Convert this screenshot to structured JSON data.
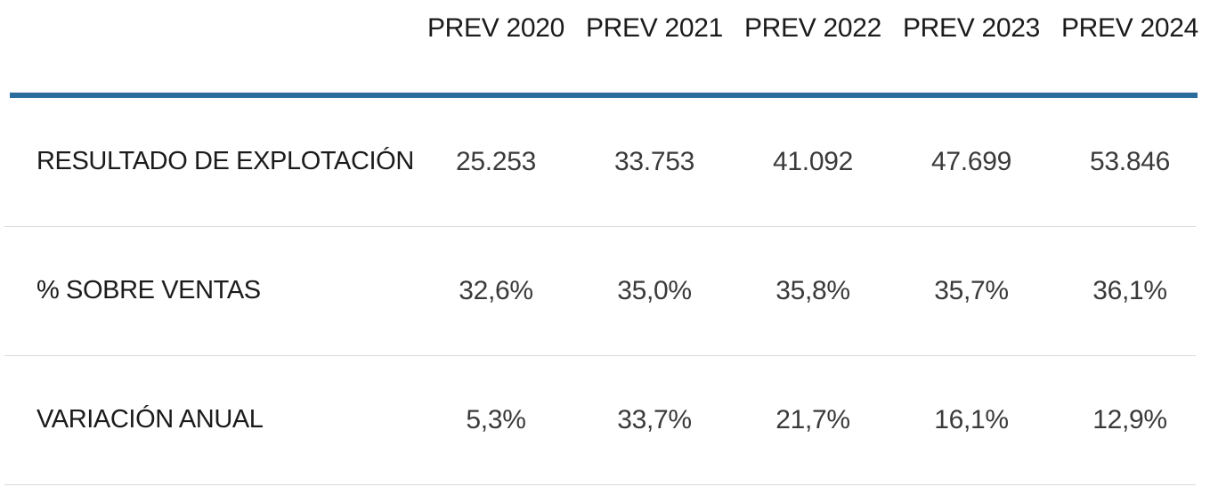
{
  "table": {
    "columns": [
      "PREV 2020",
      "PREV 2021",
      "PREV 2022",
      "PREV 2023",
      "PREV 2024"
    ],
    "rows": [
      {
        "label": "RESULTADO DE EXPLOTACIÓN",
        "values": [
          "25.253",
          "33.753",
          "41.092",
          "47.699",
          "53.846"
        ]
      },
      {
        "label": "% SOBRE VENTAS",
        "values": [
          "32,6%",
          "35,0%",
          "35,8%",
          "35,7%",
          "36,1%"
        ]
      },
      {
        "label": "VARIACIÓN ANUAL",
        "values": [
          "5,3%",
          "33,7%",
          "21,7%",
          "16,1%",
          "12,9%"
        ]
      }
    ],
    "colors": {
      "accent_rule": "#2a6d9d",
      "row_separator": "#d9d9d9",
      "header_text": "#1b1b1b",
      "label_text": "#1b1b1b",
      "value_text": "#3a3a3a",
      "background": "#ffffff"
    }
  },
  "chart_data": {
    "type": "table",
    "title": "",
    "columns": [
      "PREV 2020",
      "PREV 2021",
      "PREV 2022",
      "PREV 2023",
      "PREV 2024"
    ],
    "rows": [
      {
        "label": "RESULTADO DE EXPLOTACIÓN",
        "values": [
          25253,
          33753,
          41092,
          47699,
          53846
        ],
        "display": [
          "25.253",
          "33.753",
          "41.092",
          "47.699",
          "53.846"
        ]
      },
      {
        "label": "% SOBRE VENTAS",
        "values": [
          32.6,
          35.0,
          35.8,
          35.7,
          36.1
        ],
        "display": [
          "32,6%",
          "35,0%",
          "35,8%",
          "35,7%",
          "36,1%"
        ],
        "unit": "%"
      },
      {
        "label": "VARIACIÓN ANUAL",
        "values": [
          5.3,
          33.7,
          21.7,
          16.1,
          12.9
        ],
        "display": [
          "5,3%",
          "33,7%",
          "21,7%",
          "16,1%",
          "12,9%"
        ],
        "unit": "%"
      }
    ],
    "layout": {
      "grid": "horizontal-separators",
      "accent_rule_under_header": true
    }
  }
}
